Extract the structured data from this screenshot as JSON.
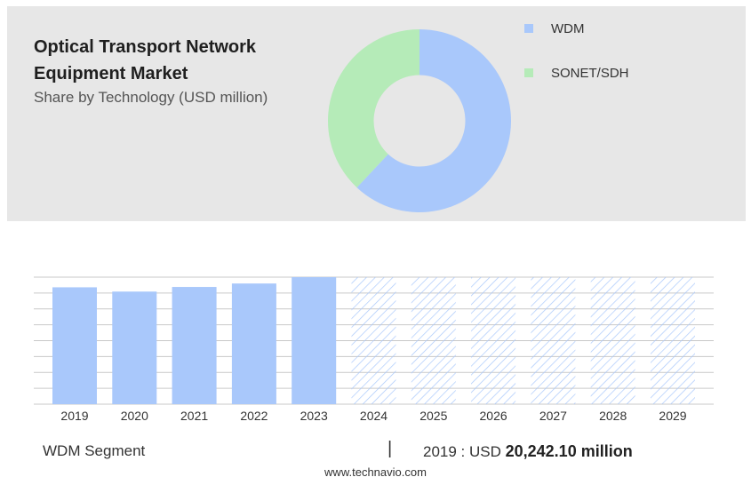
{
  "header": {
    "title": "Optical Transport Network Equipment Market",
    "subtitle": "Share by Technology (USD million)"
  },
  "colors": {
    "wdm": "#a9c8fb",
    "sonet": "#b5ebb8",
    "bar": "#a9c8fb",
    "hatch": "#a9c8fb",
    "grid": "#c9c9c9",
    "panel": "#e7e7e7"
  },
  "chart_data": [
    {
      "type": "pie",
      "title": "Share by Technology (USD million)",
      "labels": [
        "WDM",
        "SONET/SDH"
      ],
      "values": [
        62,
        38
      ],
      "hole": 0.5,
      "legend_position": "top-right"
    },
    {
      "type": "bar",
      "categories": [
        "2019",
        "2020",
        "2021",
        "2022",
        "2023",
        "2024",
        "2025",
        "2026",
        "2027",
        "2028",
        "2029"
      ],
      "values": [
        20242.1,
        19500,
        20300,
        20900,
        22000,
        22000,
        22000,
        22000,
        22000,
        22000,
        22000
      ],
      "forecast_from": "2024",
      "ylim": [
        0,
        22000
      ],
      "grid": true
    }
  ],
  "footer": {
    "segment": "WDM Segment",
    "separator": "|",
    "year_prefix": "2019 : USD",
    "value": "20,242.10 million",
    "source": "www.technavio.com"
  }
}
